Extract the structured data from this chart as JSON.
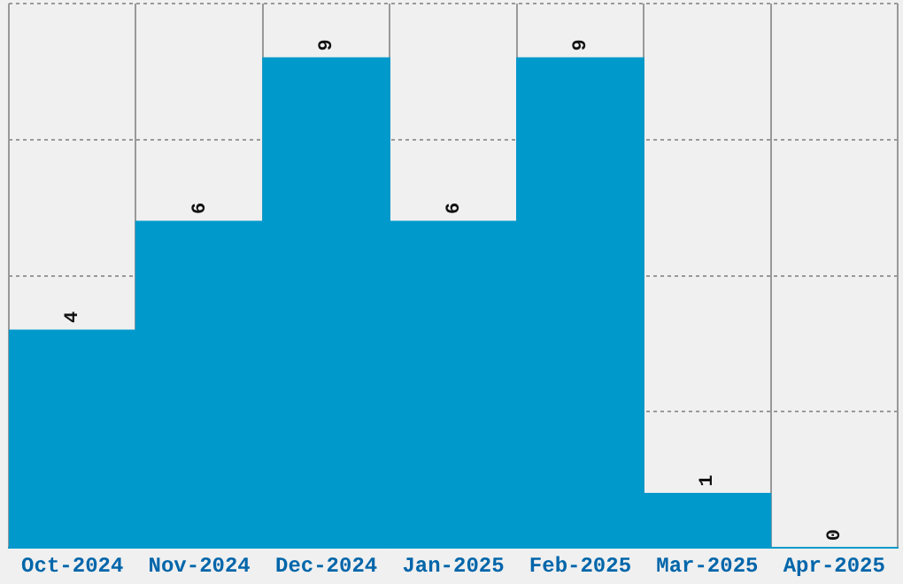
{
  "chart_data": {
    "type": "bar",
    "categories": [
      "Oct-2024",
      "Nov-2024",
      "Dec-2024",
      "Jan-2025",
      "Feb-2025",
      "Mar-2025",
      "Apr-2025"
    ],
    "values": [
      4,
      6,
      9,
      6,
      9,
      1,
      0
    ],
    "color": "#0099cc",
    "ylim": [
      0,
      10
    ],
    "yticks": [
      {
        "value": 0,
        "label": null
      },
      {
        "value": 2.5,
        "label": null
      },
      {
        "value": 5,
        "label": null
      },
      {
        "value": 7.5,
        "label": null
      },
      {
        "value": 10,
        "label": null
      }
    ],
    "grid": true,
    "tick_labels": "x",
    "data_labels": true
  }
}
